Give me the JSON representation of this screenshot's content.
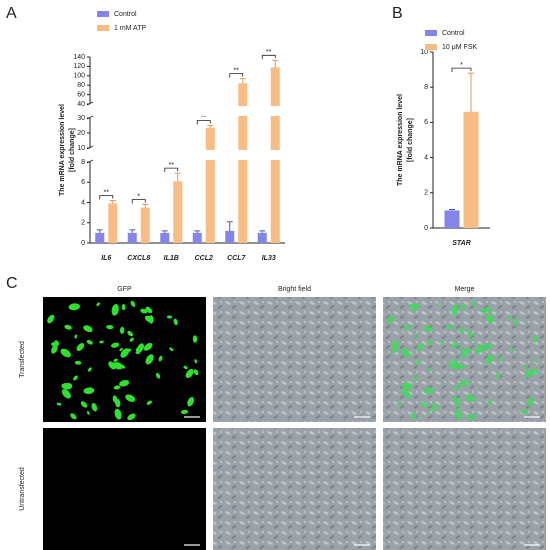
{
  "chart_data": [
    {
      "type": "bar",
      "panel": "A",
      "ylabel": "The mRNA expression level",
      "ylabel_line2": "[fold change]",
      "categories": [
        "IL6",
        "CXCL8",
        "IL1B",
        "CCL2",
        "CCL7",
        "IL33"
      ],
      "series": [
        {
          "name": "Control",
          "color": "#8484ea",
          "values": [
            1.0,
            1.0,
            1.0,
            1.0,
            1.2,
            1.0
          ],
          "errors": [
            0.3,
            0.3,
            0.2,
            0.2,
            0.9,
            0.2
          ]
        },
        {
          "name": "1 mM ATP",
          "color": "#f7bd85",
          "values": [
            3.9,
            3.5,
            6.1,
            23.5,
            84,
            118
          ],
          "errors": [
            0.3,
            0.3,
            0.8,
            1.5,
            10,
            15
          ]
        }
      ],
      "significance": [
        "**",
        "*",
        "**",
        "**",
        "**",
        "**"
      ],
      "ylim": [
        0,
        140
      ],
      "axis_segments": [
        [
          0,
          8
        ],
        [
          10,
          30
        ],
        [
          40,
          140
        ]
      ],
      "yticks": [
        0,
        2,
        4,
        6,
        8,
        10,
        20,
        30,
        40,
        60,
        80,
        100,
        120,
        140
      ]
    },
    {
      "type": "bar",
      "panel": "B",
      "ylabel": "The mRNA expression level",
      "ylabel_line2": "[fold change]",
      "categories": [
        "STAR"
      ],
      "series": [
        {
          "name": "Control",
          "color": "#8484ea",
          "values": [
            1.0
          ],
          "errors": [
            0.05
          ]
        },
        {
          "name": "10 μM FSK",
          "color": "#f7bd85",
          "values": [
            6.6
          ],
          "errors": [
            2.2
          ]
        }
      ],
      "significance": [
        "*"
      ],
      "ylim": [
        0,
        10
      ],
      "axis_segments": [
        [
          0,
          10
        ]
      ],
      "yticks": [
        0,
        2,
        4,
        6,
        8,
        10
      ]
    }
  ],
  "panel_c": {
    "label": "C",
    "columns": [
      "GFP",
      "Bright field",
      "Merge"
    ],
    "rows": [
      "Transfected",
      "Untransfected"
    ]
  }
}
